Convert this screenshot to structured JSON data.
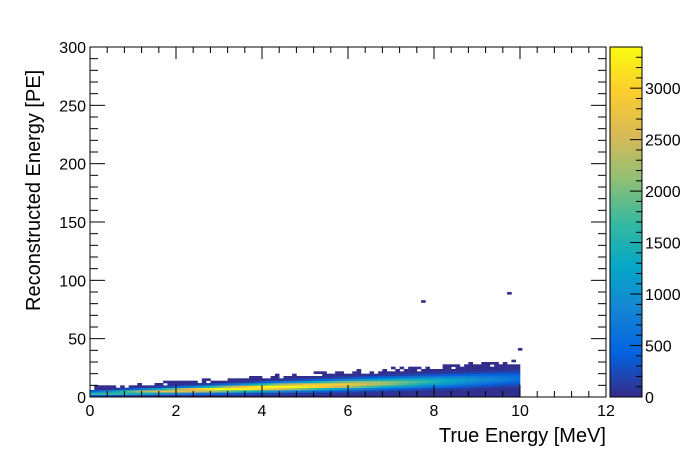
{
  "chart_data": {
    "type": "heatmap",
    "title": "",
    "xlabel": "True Energy [MeV]",
    "ylabel": "Reconstructed Energy [PE]",
    "xlim": [
      0,
      12
    ],
    "ylim": [
      0,
      300
    ],
    "xticks": [
      0,
      2,
      4,
      6,
      8,
      10,
      12
    ],
    "yticks": [
      0,
      50,
      100,
      150,
      200,
      250,
      300
    ],
    "colorbar": {
      "min": 0,
      "max": 3400,
      "ticks": [
        0,
        500,
        1000,
        1500,
        2000,
        2500,
        3000
      ],
      "colormap": [
        "#352a87",
        "#0363e1",
        "#1485d4",
        "#06a7c6",
        "#38b99e",
        "#92bf73",
        "#d9ba56",
        "#fcce2e",
        "#f9fb0e"
      ]
    },
    "bin_width_x": 0.1,
    "bin_width_y": 2,
    "band": {
      "x_range": [
        0,
        10
      ],
      "peak_pe_at_0": 3,
      "peak_pe_per_mev": 1.3,
      "upper_edge_pe_at_0": 7,
      "upper_edge_pe_at_10": 30,
      "max_count": 3300,
      "max_count_at_mev": 4
    },
    "outliers": [
      {
        "x": 7.7,
        "y": 81,
        "count": 30
      },
      {
        "x": 9.7,
        "y": 88,
        "count": 30
      },
      {
        "x": 9.95,
        "y": 40,
        "count": 30
      }
    ]
  }
}
